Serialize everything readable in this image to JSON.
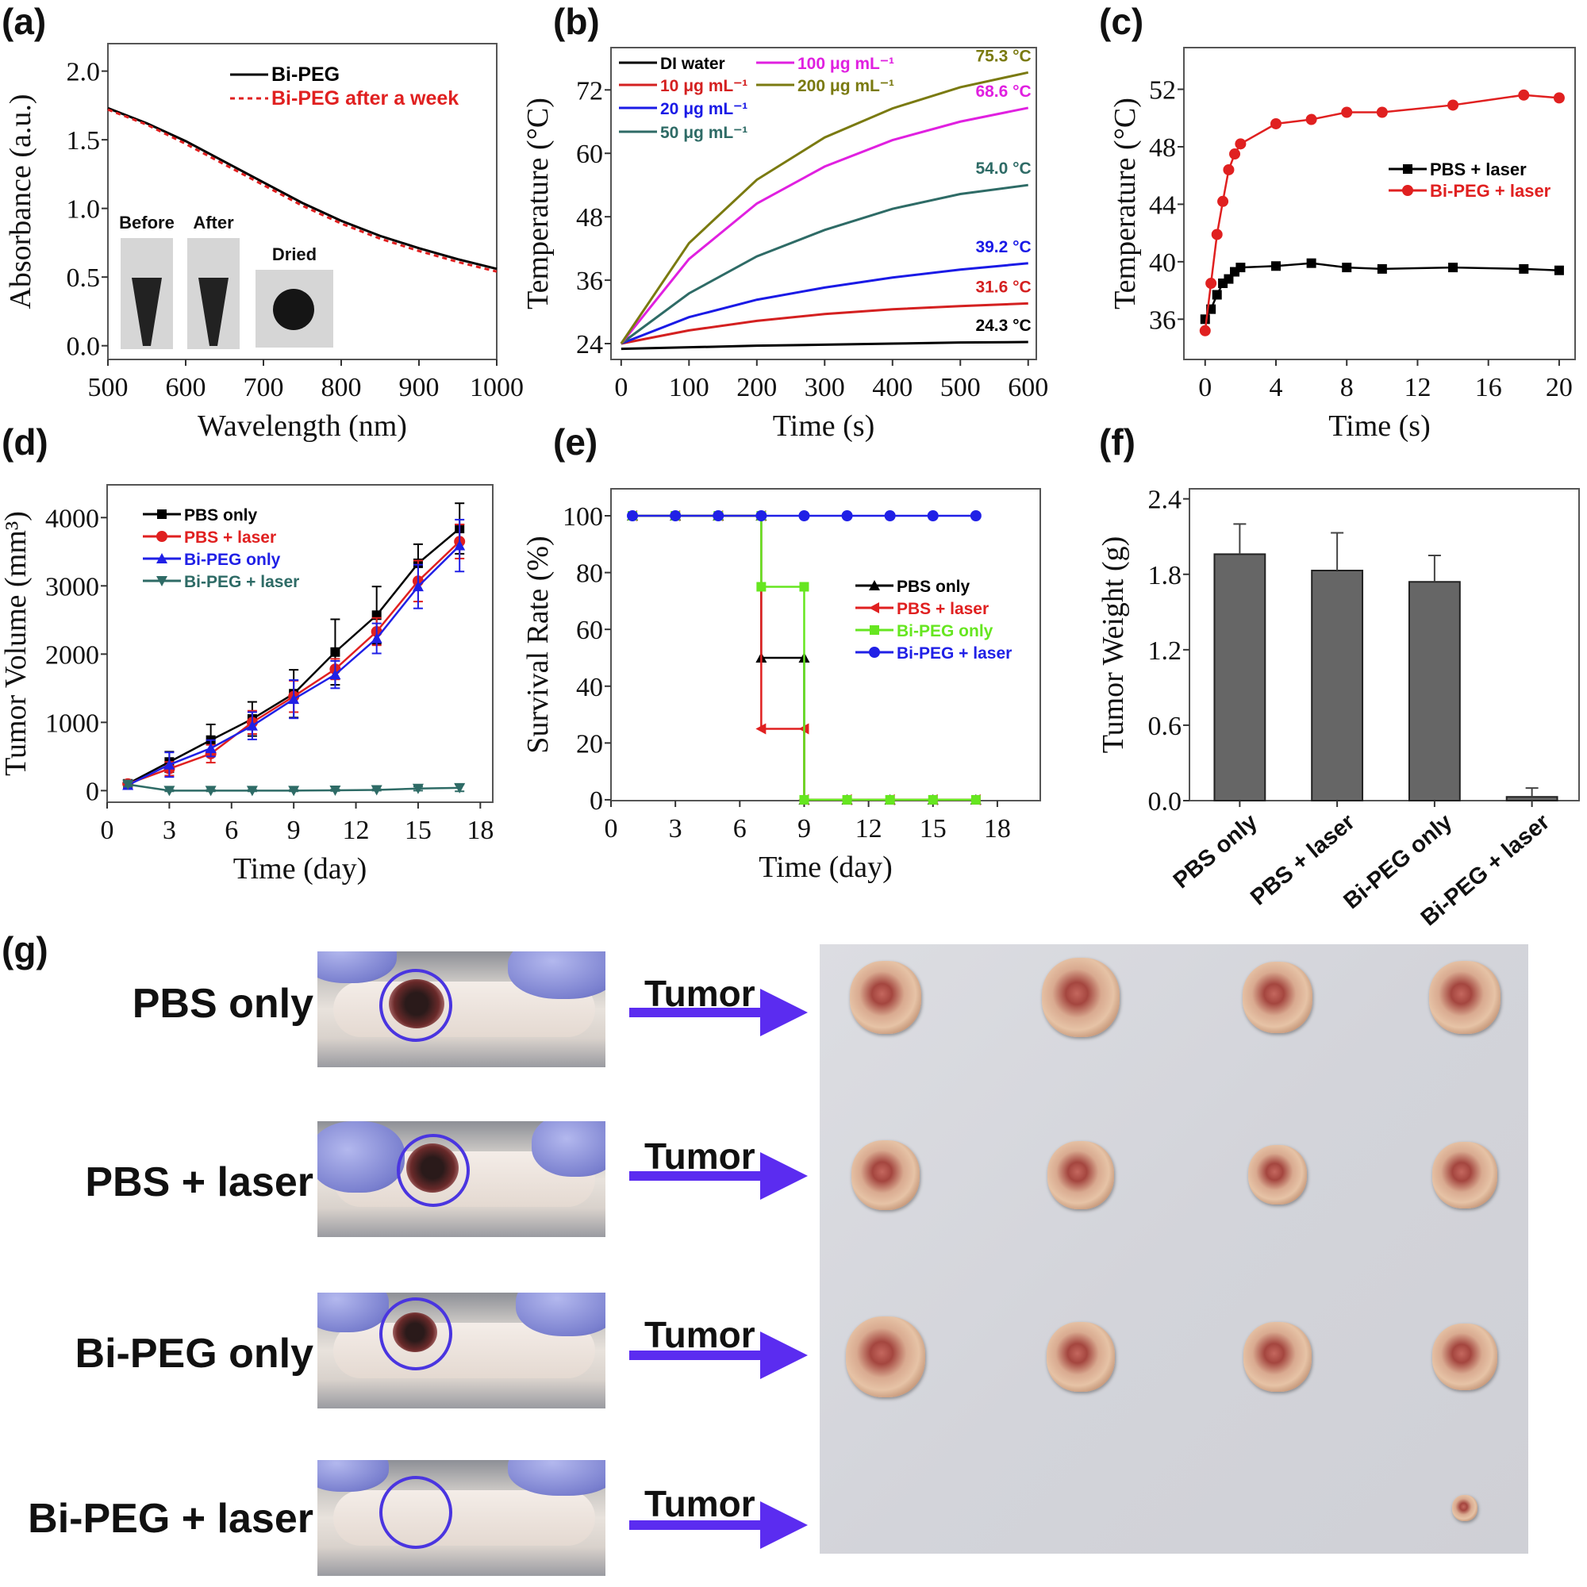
{
  "panel_labels": [
    "(a)",
    "(b)",
    "(c)",
    "(d)",
    "(e)",
    "(f)",
    "(g)"
  ],
  "chart_data": [
    {
      "panel": "(a)",
      "type": "line",
      "xlabel": "Wavelength (nm)",
      "ylabel": "Absorbance (a.u.)",
      "xlim": [
        500,
        1000
      ],
      "ylim": [
        -0.1,
        2.2
      ],
      "xticks": [
        "500",
        "600",
        "700",
        "800",
        "900",
        "1000"
      ],
      "yticks": [
        "0.0",
        "0.5",
        "1.0",
        "1.5",
        "2.0"
      ],
      "x": [
        500,
        550,
        600,
        650,
        700,
        750,
        800,
        850,
        900,
        950,
        1000
      ],
      "series": [
        {
          "name": "Bi-PEG",
          "color": "#000000",
          "dash": false,
          "values": [
            1.73,
            1.62,
            1.49,
            1.34,
            1.19,
            1.04,
            0.91,
            0.8,
            0.71,
            0.63,
            0.56
          ]
        },
        {
          "name": "Bi-PEG after a week",
          "color": "#e02020",
          "dash": true,
          "values": [
            1.72,
            1.61,
            1.47,
            1.32,
            1.17,
            1.02,
            0.89,
            0.78,
            0.69,
            0.61,
            0.54
          ]
        }
      ],
      "legend": "top-right",
      "inset_labels": [
        "Before",
        "After",
        "Dried"
      ]
    },
    {
      "panel": "(b)",
      "type": "line",
      "xlabel": "Time (s)",
      "ylabel": "Temperature (°C)",
      "xlim": [
        -15,
        612
      ],
      "ylim": [
        21,
        80
      ],
      "xticks": [
        "0",
        "100",
        "200",
        "300",
        "400",
        "500",
        "600"
      ],
      "yticks": [
        "24",
        "36",
        "48",
        "60",
        "72"
      ],
      "x": [
        0,
        100,
        200,
        300,
        400,
        500,
        600
      ],
      "series": [
        {
          "name": "DI water",
          "color": "#000000",
          "end_label": "24.3 °C",
          "values": [
            23.0,
            23.3,
            23.6,
            23.8,
            24.0,
            24.2,
            24.3
          ]
        },
        {
          "name": "10 μg mL⁻¹",
          "color": "#d42020",
          "end_label": "31.6 °C",
          "values": [
            24.0,
            26.5,
            28.3,
            29.6,
            30.5,
            31.1,
            31.6
          ]
        },
        {
          "name": "20 μg mL⁻¹",
          "color": "#1a1ae6",
          "end_label": "39.2 °C",
          "values": [
            24.0,
            29.0,
            32.3,
            34.6,
            36.5,
            38.0,
            39.2
          ]
        },
        {
          "name": "50 μg mL⁻¹",
          "color": "#2e6b66",
          "end_label": "54.0 °C",
          "values": [
            24.0,
            33.5,
            40.5,
            45.5,
            49.5,
            52.3,
            54.0
          ]
        },
        {
          "name": "100 μg mL⁻¹",
          "color": "#e020e0",
          "end_label": "68.6 °C",
          "values": [
            24.0,
            40.0,
            50.5,
            57.5,
            62.5,
            66.0,
            68.6
          ]
        },
        {
          "name": "200 μg mL⁻¹",
          "color": "#7a7a10",
          "end_label": "75.3 °C",
          "values": [
            24.0,
            43.0,
            55.0,
            63.0,
            68.5,
            72.5,
            75.3
          ]
        }
      ],
      "legend": "top-left"
    },
    {
      "panel": "(c)",
      "type": "line",
      "xlabel": "Time (s)",
      "ylabel": "Temperature (°C)",
      "xlim": [
        -1.2,
        20.9
      ],
      "ylim": [
        33.2,
        54.9
      ],
      "xticks": [
        "0",
        "4",
        "8",
        "12",
        "16",
        "20"
      ],
      "yticks": [
        "36",
        "40",
        "44",
        "48",
        "52"
      ],
      "x": [
        0,
        0.33,
        0.67,
        1,
        1.33,
        1.67,
        2,
        4,
        6,
        8,
        10,
        14,
        18,
        20
      ],
      "series": [
        {
          "name": "PBS + laser",
          "color": "#000000",
          "marker": "square",
          "values": [
            36.0,
            36.7,
            37.7,
            38.5,
            38.8,
            39.3,
            39.6,
            39.7,
            39.9,
            39.6,
            39.5,
            39.6,
            39.5,
            39.4
          ]
        },
        {
          "name": "Bi-PEG + laser",
          "color": "#e02020",
          "marker": "circle",
          "values": [
            35.2,
            38.5,
            41.9,
            44.2,
            46.4,
            47.5,
            48.2,
            49.6,
            49.9,
            50.4,
            50.4,
            50.9,
            51.6,
            51.4
          ]
        }
      ],
      "legend": "right"
    },
    {
      "panel": "(d)",
      "type": "line",
      "xlabel": "Time (day)",
      "ylabel": "Tumor Volume (mm³)",
      "xlim": [
        0,
        18.6
      ],
      "ylim": [
        -170,
        4480
      ],
      "xticks": [
        "0",
        "3",
        "6",
        "9",
        "12",
        "15",
        "18"
      ],
      "yticks": [
        "0",
        "1000",
        "2000",
        "3000",
        "4000"
      ],
      "x": [
        1,
        3,
        5,
        7,
        9,
        11,
        13,
        15,
        17
      ],
      "series": [
        {
          "name": "PBS only",
          "color": "#000000",
          "marker": "square",
          "values": [
            100,
            420,
            740,
            1050,
            1420,
            2030,
            2570,
            3330,
            3840
          ],
          "error": [
            50,
            150,
            230,
            250,
            350,
            480,
            420,
            280,
            370
          ]
        },
        {
          "name": "PBS + laser",
          "color": "#e02020",
          "marker": "circle",
          "values": [
            100,
            320,
            540,
            1000,
            1380,
            1780,
            2330,
            3070,
            3650
          ],
          "error": [
            50,
            100,
            130,
            170,
            230,
            150,
            200,
            300,
            250
          ]
        },
        {
          "name": "Bi-PEG only",
          "color": "#2020e6",
          "marker": "triangle-up",
          "values": [
            80,
            380,
            620,
            950,
            1340,
            1700,
            2230,
            2990,
            3590
          ],
          "error": [
            50,
            180,
            120,
            200,
            280,
            200,
            220,
            320,
            380
          ]
        },
        {
          "name": "Bi-PEG + laser",
          "color": "#2e6b66",
          "marker": "triangle-down",
          "values": [
            90,
            0,
            0,
            0,
            0,
            5,
            10,
            30,
            40
          ],
          "error": [
            30,
            10,
            10,
            10,
            10,
            10,
            10,
            30,
            50
          ]
        }
      ],
      "legend": "top-left"
    },
    {
      "panel": "(e)",
      "type": "line",
      "xlabel": "Time (day)",
      "ylabel": "Survival Rate (%)",
      "xlim": [
        0,
        20
      ],
      "ylim": [
        -0.3,
        109.5
      ],
      "xticks": [
        "0",
        "3",
        "6",
        "9",
        "12",
        "15",
        "18"
      ],
      "yticks": [
        "0",
        "20",
        "40",
        "60",
        "80",
        "100"
      ],
      "x": [
        1,
        3,
        5,
        7,
        9,
        11,
        13,
        15,
        17
      ],
      "step": true,
      "series": [
        {
          "name": "PBS only",
          "color": "#000000",
          "marker": "triangle-up",
          "values": [
            100,
            100,
            100,
            50,
            0,
            0,
            0,
            0,
            0
          ]
        },
        {
          "name": "PBS + laser",
          "color": "#e02020",
          "marker": "triangle-left",
          "values": [
            100,
            100,
            100,
            25,
            0,
            0,
            0,
            0,
            0
          ]
        },
        {
          "name": "Bi-PEG only",
          "color": "#66e620",
          "marker": "square",
          "values": [
            100,
            100,
            100,
            75,
            0,
            0,
            0,
            0,
            0
          ]
        },
        {
          "name": "Bi-PEG + laser",
          "color": "#2020e6",
          "marker": "circle",
          "values": [
            100,
            100,
            100,
            100,
            100,
            100,
            100,
            100,
            100
          ]
        }
      ],
      "legend": "right"
    },
    {
      "panel": "(f)",
      "type": "bar",
      "ylabel": "Tumor Weight (g)",
      "ylim": [
        0,
        2.48
      ],
      "yticks": [
        "0.0",
        "0.6",
        "1.2",
        "1.8",
        "2.4"
      ],
      "categories": [
        "PBS only",
        "PBS + laser",
        "Bi-PEG only",
        "Bi-PEG + laser"
      ],
      "values": [
        1.96,
        1.83,
        1.74,
        0.03
      ],
      "error": [
        0.24,
        0.3,
        0.21,
        0.07
      ],
      "color": "#666666"
    }
  ],
  "panel_g": {
    "groups": [
      "PBS only",
      "PBS + laser",
      "Bi-PEG only",
      "Bi-PEG + laser"
    ],
    "arrow_label": "Tumor",
    "tumor_counts": [
      4,
      4,
      4,
      1
    ],
    "ring_color": "#4a35e0",
    "arrow_color": "#5b2cf0"
  }
}
